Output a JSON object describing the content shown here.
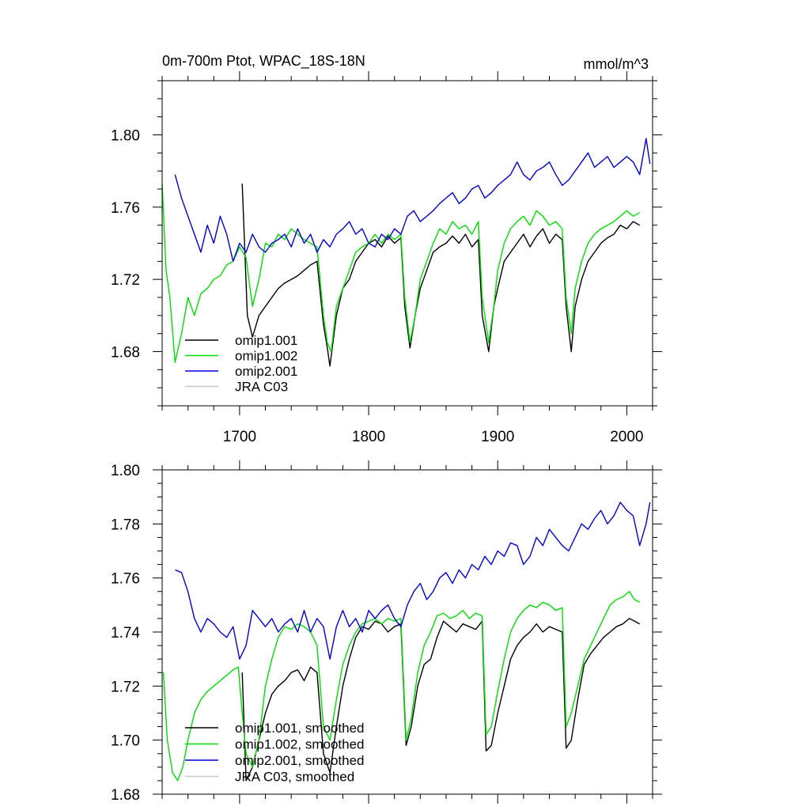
{
  "chart_data": [
    {
      "type": "line",
      "title": "0m-700m Ptot, WPAC_18S-18N",
      "units": "mmol/m^3",
      "xlim": [
        1640,
        2020
      ],
      "ylim": [
        1.65,
        1.83
      ],
      "xticks": [
        1700,
        1800,
        1900,
        2000
      ],
      "xtick_labels": [
        "1700",
        "1800",
        "1900",
        "2000"
      ],
      "yticks": [
        1.68,
        1.72,
        1.76,
        1.8
      ],
      "ytick_labels": [
        "1.68",
        "1.72",
        "1.76",
        "1.80"
      ],
      "legend_position": "lower-left",
      "series": [
        {
          "name": "omip1.001",
          "color": "#000000",
          "x": [
            1702,
            1706,
            1710,
            1715,
            1720,
            1725,
            1730,
            1735,
            1740,
            1745,
            1750,
            1755,
            1760,
            1765,
            1768,
            1770,
            1775,
            1780,
            1785,
            1790,
            1795,
            1800,
            1805,
            1810,
            1815,
            1820,
            1825,
            1828,
            1832,
            1836,
            1840,
            1845,
            1850,
            1855,
            1860,
            1865,
            1870,
            1875,
            1880,
            1885,
            1888,
            1893,
            1897,
            1900,
            1905,
            1910,
            1915,
            1920,
            1925,
            1930,
            1935,
            1940,
            1945,
            1950,
            1953,
            1957,
            1960,
            1965,
            1970,
            1975,
            1980,
            1985,
            1990,
            1995,
            2000,
            2005,
            2010
          ],
          "y": [
            1.773,
            1.7,
            1.688,
            1.7,
            1.705,
            1.71,
            1.715,
            1.718,
            1.72,
            1.722,
            1.725,
            1.728,
            1.73,
            1.695,
            1.682,
            1.672,
            1.7,
            1.715,
            1.72,
            1.73,
            1.735,
            1.74,
            1.742,
            1.738,
            1.744,
            1.74,
            1.743,
            1.705,
            1.682,
            1.7,
            1.715,
            1.725,
            1.735,
            1.738,
            1.74,
            1.744,
            1.74,
            1.745,
            1.738,
            1.742,
            1.7,
            1.68,
            1.705,
            1.715,
            1.73,
            1.735,
            1.74,
            1.745,
            1.738,
            1.744,
            1.748,
            1.74,
            1.745,
            1.742,
            1.705,
            1.68,
            1.705,
            1.72,
            1.73,
            1.735,
            1.74,
            1.743,
            1.745,
            1.75,
            1.748,
            1.752,
            1.75
          ]
        },
        {
          "name": "omip1.002",
          "color": "#00e000",
          "x": [
            1640,
            1643,
            1646,
            1650,
            1655,
            1660,
            1665,
            1670,
            1675,
            1680,
            1685,
            1690,
            1695,
            1700,
            1705,
            1710,
            1715,
            1720,
            1725,
            1730,
            1735,
            1740,
            1745,
            1750,
            1755,
            1760,
            1765,
            1768,
            1771,
            1775,
            1780,
            1785,
            1790,
            1795,
            1800,
            1805,
            1810,
            1815,
            1820,
            1825,
            1828,
            1832,
            1836,
            1840,
            1845,
            1850,
            1855,
            1860,
            1865,
            1870,
            1875,
            1880,
            1885,
            1888,
            1893,
            1897,
            1900,
            1905,
            1910,
            1915,
            1920,
            1925,
            1930,
            1935,
            1940,
            1945,
            1950,
            1953,
            1957,
            1960,
            1965,
            1970,
            1975,
            1980,
            1985,
            1990,
            1995,
            2000,
            2005,
            2010
          ],
          "y": [
            1.773,
            1.725,
            1.71,
            1.674,
            1.69,
            1.71,
            1.7,
            1.712,
            1.715,
            1.72,
            1.722,
            1.728,
            1.73,
            1.738,
            1.732,
            1.705,
            1.72,
            1.74,
            1.738,
            1.745,
            1.742,
            1.748,
            1.745,
            1.742,
            1.74,
            1.738,
            1.7,
            1.685,
            1.68,
            1.705,
            1.715,
            1.725,
            1.735,
            1.738,
            1.74,
            1.745,
            1.74,
            1.745,
            1.742,
            1.745,
            1.71,
            1.685,
            1.7,
            1.72,
            1.73,
            1.74,
            1.748,
            1.745,
            1.752,
            1.748,
            1.75,
            1.745,
            1.752,
            1.71,
            1.685,
            1.705,
            1.725,
            1.74,
            1.748,
            1.752,
            1.755,
            1.75,
            1.758,
            1.755,
            1.75,
            1.752,
            1.748,
            1.71,
            1.69,
            1.715,
            1.73,
            1.74,
            1.745,
            1.748,
            1.75,
            1.752,
            1.755,
            1.758,
            1.755,
            1.757
          ]
        },
        {
          "name": "omip2.001",
          "color": "#0000dd",
          "x": [
            1650,
            1655,
            1660,
            1665,
            1670,
            1675,
            1680,
            1685,
            1690,
            1695,
            1700,
            1705,
            1710,
            1715,
            1720,
            1725,
            1730,
            1735,
            1740,
            1745,
            1750,
            1755,
            1760,
            1765,
            1770,
            1775,
            1780,
            1785,
            1790,
            1795,
            1800,
            1805,
            1810,
            1815,
            1820,
            1825,
            1830,
            1835,
            1840,
            1845,
            1850,
            1855,
            1860,
            1865,
            1870,
            1875,
            1880,
            1885,
            1890,
            1895,
            1900,
            1905,
            1910,
            1915,
            1920,
            1925,
            1930,
            1935,
            1940,
            1945,
            1950,
            1955,
            1960,
            1965,
            1970,
            1975,
            1980,
            1985,
            1990,
            1995,
            2000,
            2005,
            2010,
            2015,
            2018
          ],
          "y": [
            1.778,
            1.765,
            1.755,
            1.745,
            1.735,
            1.75,
            1.74,
            1.755,
            1.745,
            1.73,
            1.74,
            1.735,
            1.745,
            1.738,
            1.735,
            1.74,
            1.742,
            1.745,
            1.738,
            1.748,
            1.74,
            1.745,
            1.735,
            1.742,
            1.738,
            1.745,
            1.748,
            1.752,
            1.745,
            1.748,
            1.74,
            1.738,
            1.745,
            1.742,
            1.748,
            1.745,
            1.755,
            1.758,
            1.752,
            1.755,
            1.758,
            1.762,
            1.765,
            1.768,
            1.762,
            1.765,
            1.77,
            1.772,
            1.765,
            1.768,
            1.772,
            1.775,
            1.778,
            1.785,
            1.778,
            1.775,
            1.78,
            1.782,
            1.785,
            1.778,
            1.772,
            1.775,
            1.78,
            1.785,
            1.79,
            1.782,
            1.785,
            1.788,
            1.782,
            1.785,
            1.788,
            1.785,
            1.778,
            1.798,
            1.784
          ]
        },
        {
          "name": "JRA C03",
          "color": "#c8c8c8",
          "x": [],
          "y": []
        }
      ]
    },
    {
      "type": "line",
      "title": "",
      "units": "",
      "xlim": [
        1640,
        2020
      ],
      "ylim": [
        1.68,
        1.8
      ],
      "xticks": [
        1700,
        1800,
        1900,
        2000
      ],
      "xtick_labels": [],
      "yticks": [
        1.68,
        1.7,
        1.72,
        1.74,
        1.76,
        1.78,
        1.8
      ],
      "ytick_labels": [
        "1.68",
        "1.70",
        "1.72",
        "1.74",
        "1.76",
        "1.78",
        "1.80"
      ],
      "legend_position": "lower-left",
      "series": [
        {
          "name": "omip1.001, smoothed",
          "color": "#000000",
          "x": [
            1702,
            1705,
            1710,
            1715,
            1720,
            1725,
            1730,
            1735,
            1740,
            1745,
            1750,
            1755,
            1760,
            1765,
            1770,
            1775,
            1780,
            1785,
            1790,
            1795,
            1800,
            1805,
            1810,
            1815,
            1820,
            1825,
            1829,
            1833,
            1838,
            1843,
            1848,
            1853,
            1858,
            1863,
            1868,
            1873,
            1878,
            1883,
            1888,
            1891,
            1895,
            1900,
            1905,
            1910,
            1915,
            1920,
            1925,
            1930,
            1935,
            1940,
            1945,
            1950,
            1953,
            1957,
            1962,
            1967,
            1972,
            1977,
            1982,
            1987,
            1992,
            1997,
            2002,
            2006,
            2010
          ],
          "y": [
            1.725,
            1.685,
            1.69,
            1.7,
            1.71,
            1.717,
            1.72,
            1.722,
            1.725,
            1.726,
            1.722,
            1.727,
            1.725,
            1.695,
            1.688,
            1.705,
            1.72,
            1.73,
            1.738,
            1.742,
            1.741,
            1.744,
            1.743,
            1.74,
            1.742,
            1.743,
            1.698,
            1.705,
            1.72,
            1.728,
            1.73,
            1.738,
            1.744,
            1.742,
            1.74,
            1.743,
            1.742,
            1.741,
            1.744,
            1.696,
            1.698,
            1.71,
            1.72,
            1.73,
            1.735,
            1.738,
            1.74,
            1.743,
            1.74,
            1.742,
            1.741,
            1.74,
            1.697,
            1.7,
            1.715,
            1.728,
            1.732,
            1.735,
            1.738,
            1.74,
            1.742,
            1.743,
            1.745,
            1.744,
            1.743
          ]
        },
        {
          "name": "omip1.002, smoothed",
          "color": "#00e000",
          "x": [
            1641,
            1644,
            1648,
            1652,
            1656,
            1660,
            1665,
            1670,
            1675,
            1680,
            1685,
            1690,
            1695,
            1699,
            1702,
            1705,
            1710,
            1715,
            1720,
            1725,
            1730,
            1735,
            1740,
            1745,
            1750,
            1755,
            1760,
            1765,
            1770,
            1775,
            1780,
            1785,
            1790,
            1795,
            1800,
            1805,
            1810,
            1815,
            1820,
            1825,
            1829,
            1833,
            1838,
            1843,
            1848,
            1853,
            1858,
            1863,
            1868,
            1873,
            1878,
            1883,
            1888,
            1891,
            1895,
            1900,
            1905,
            1910,
            1915,
            1920,
            1925,
            1930,
            1935,
            1940,
            1945,
            1950,
            1953,
            1957,
            1962,
            1967,
            1972,
            1977,
            1982,
            1987,
            1992,
            1997,
            2002,
            2006,
            2010
          ],
          "y": [
            1.725,
            1.7,
            1.688,
            1.685,
            1.69,
            1.7,
            1.71,
            1.715,
            1.718,
            1.72,
            1.722,
            1.724,
            1.726,
            1.727,
            1.71,
            1.695,
            1.69,
            1.7,
            1.72,
            1.73,
            1.738,
            1.742,
            1.741,
            1.743,
            1.742,
            1.74,
            1.735,
            1.705,
            1.7,
            1.715,
            1.728,
            1.735,
            1.74,
            1.743,
            1.744,
            1.745,
            1.743,
            1.745,
            1.744,
            1.745,
            1.7,
            1.708,
            1.725,
            1.735,
            1.74,
            1.746,
            1.747,
            1.745,
            1.746,
            1.748,
            1.745,
            1.747,
            1.746,
            1.702,
            1.705,
            1.718,
            1.73,
            1.74,
            1.745,
            1.748,
            1.75,
            1.749,
            1.751,
            1.75,
            1.748,
            1.749,
            1.705,
            1.71,
            1.72,
            1.73,
            1.735,
            1.74,
            1.745,
            1.75,
            1.752,
            1.753,
            1.755,
            1.752,
            1.751
          ]
        },
        {
          "name": "omip2.001, smoothed",
          "color": "#0000dd",
          "x": [
            1650,
            1655,
            1660,
            1665,
            1670,
            1675,
            1680,
            1685,
            1690,
            1695,
            1700,
            1705,
            1710,
            1715,
            1720,
            1725,
            1730,
            1735,
            1740,
            1745,
            1750,
            1755,
            1760,
            1765,
            1770,
            1775,
            1780,
            1785,
            1790,
            1795,
            1800,
            1805,
            1810,
            1815,
            1820,
            1825,
            1830,
            1835,
            1840,
            1845,
            1850,
            1855,
            1860,
            1865,
            1870,
            1875,
            1880,
            1885,
            1890,
            1895,
            1900,
            1905,
            1910,
            1915,
            1920,
            1925,
            1930,
            1935,
            1940,
            1945,
            1950,
            1955,
            1960,
            1965,
            1970,
            1975,
            1980,
            1985,
            1990,
            1995,
            2000,
            2005,
            2010,
            2015,
            2018
          ],
          "y": [
            1.763,
            1.762,
            1.755,
            1.745,
            1.74,
            1.745,
            1.743,
            1.74,
            1.738,
            1.742,
            1.73,
            1.735,
            1.748,
            1.745,
            1.742,
            1.745,
            1.74,
            1.743,
            1.745,
            1.74,
            1.748,
            1.74,
            1.745,
            1.742,
            1.73,
            1.742,
            1.748,
            1.742,
            1.745,
            1.74,
            1.748,
            1.745,
            1.748,
            1.75,
            1.745,
            1.742,
            1.75,
            1.755,
            1.758,
            1.752,
            1.755,
            1.76,
            1.762,
            1.758,
            1.763,
            1.76,
            1.765,
            1.763,
            1.768,
            1.765,
            1.77,
            1.768,
            1.773,
            1.772,
            1.765,
            1.768,
            1.775,
            1.772,
            1.778,
            1.775,
            1.772,
            1.77,
            1.775,
            1.78,
            1.778,
            1.782,
            1.785,
            1.78,
            1.783,
            1.788,
            1.785,
            1.783,
            1.772,
            1.78,
            1.788
          ]
        },
        {
          "name": "JRA C03, smoothed",
          "color": "#c8c8c8",
          "x": [],
          "y": []
        }
      ]
    }
  ]
}
